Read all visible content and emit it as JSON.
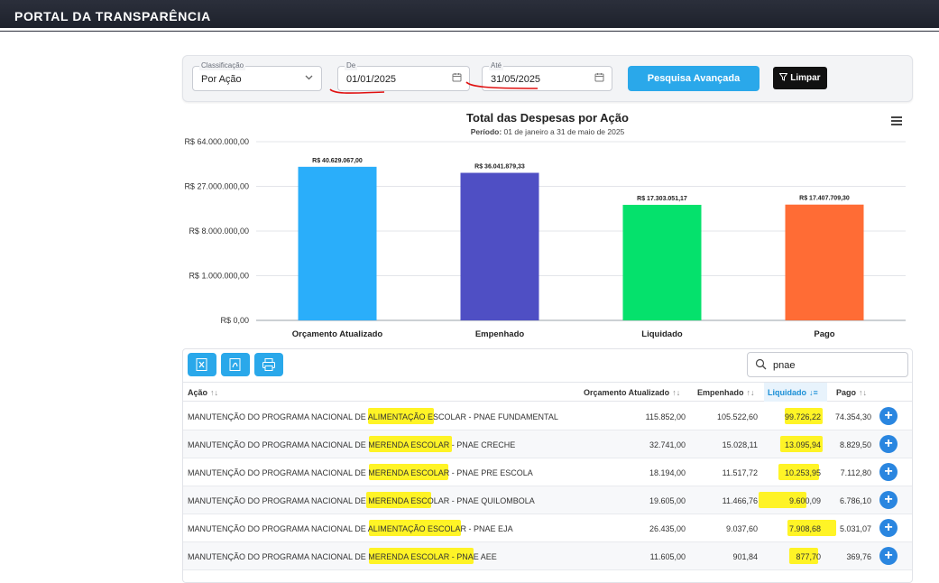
{
  "header": {
    "brand": "PORTAL DA TRANSPARÊNCIA"
  },
  "filters": {
    "classificacao": {
      "label": "Classificação",
      "value": "Por Ação"
    },
    "de": {
      "label": "De",
      "value": "01/01/2025"
    },
    "ate": {
      "label": "Até",
      "value": "31/05/2025"
    },
    "advanced_button": "Pesquisa Avançada",
    "clear_button": "Limpar"
  },
  "chart": {
    "period_label": "Período:",
    "period_value": "01 de janeiro a 31 de maio de 2025",
    "menu_icon": "hamburger-icon"
  },
  "chart_data": {
    "type": "bar",
    "title": "Total das Despesas por Ação",
    "categories": [
      "Orçamento Atualizado",
      "Empenhado",
      "Liquidado",
      "Pago"
    ],
    "values": [
      40629067.0,
      36041879.33,
      17303051.17,
      17407709.3
    ],
    "value_labels": [
      "R$ 40.629.067,00",
      "R$ 36.041.879,33",
      "R$ 17.303.051,17",
      "R$ 17.407.709,30"
    ],
    "colors": [
      "#2aaefa",
      "#4f4fc4",
      "#05e16c",
      "#ff6c35"
    ],
    "ytick_labels": [
      "R$ 64.000.000,00",
      "R$ 27.000.000,00",
      "R$ 8.000.000,00",
      "R$ 1.000.000,00",
      "R$ 0,00"
    ],
    "ytick_values": [
      64000000,
      27000000,
      8000000,
      1000000,
      0
    ],
    "yscale": "cube-root",
    "grid": true,
    "legend": "none"
  },
  "table": {
    "search_value": "pnae",
    "toolbar": [
      "excel-export-icon",
      "pdf-export-icon",
      "print-icon"
    ],
    "columns": {
      "acao": "Ação",
      "orcamento": "Orçamento Atualizado",
      "empenhado": "Empenhado",
      "liquidado": "Liquidado",
      "pago": "Pago"
    },
    "rows": [
      {
        "acao": "MANUTENÇÃO DO PROGRAMA NACIONAL DE ALIMENTAÇÃO ESCOLAR - PNAE FUNDAMENTAL",
        "orcamento": "115.852,00",
        "empenhado": "105.522,60",
        "liquidado": "99.726,22",
        "pago": "74.354,30"
      },
      {
        "acao": "MANUTENÇÃO DO PROGRAMA NACIONAL DE MERENDA ESCOLAR - PNAE CRECHE",
        "orcamento": "32.741,00",
        "empenhado": "15.028,11",
        "liquidado": "13.095,94",
        "pago": "8.829,50"
      },
      {
        "acao": "MANUTENÇÃO DO PROGRAMA NACIONAL DE MERENDA ESCOLAR - PNAE PRE ESCOLA",
        "orcamento": "18.194,00",
        "empenhado": "11.517,72",
        "liquidado": "10.253,95",
        "pago": "7.112,80"
      },
      {
        "acao": "MANUTENÇÃO DO PROGRAMA NACIONAL DE MERENDA ESCOLAR - PNAE QUILOMBOLA",
        "orcamento": "19.605,00",
        "empenhado": "11.466,76",
        "liquidado": "9.600,09",
        "pago": "6.786,10"
      },
      {
        "acao": "MANUTENÇÃO DO PROGRAMA NACIONAL DE ALIMENTAÇÃO ESCOLAR - PNAE EJA",
        "orcamento": "26.435,00",
        "empenhado": "9.037,60",
        "liquidado": "7.908,68",
        "pago": "5.031,07"
      },
      {
        "acao": "MANUTENÇÃO DO PROGRAMA NACIONAL DE MERENDA ESCOLAR - PNAE AEE",
        "orcamento": "11.605,00",
        "empenhado": "901,84",
        "liquidado": "877,70",
        "pago": "369,76"
      }
    ]
  }
}
